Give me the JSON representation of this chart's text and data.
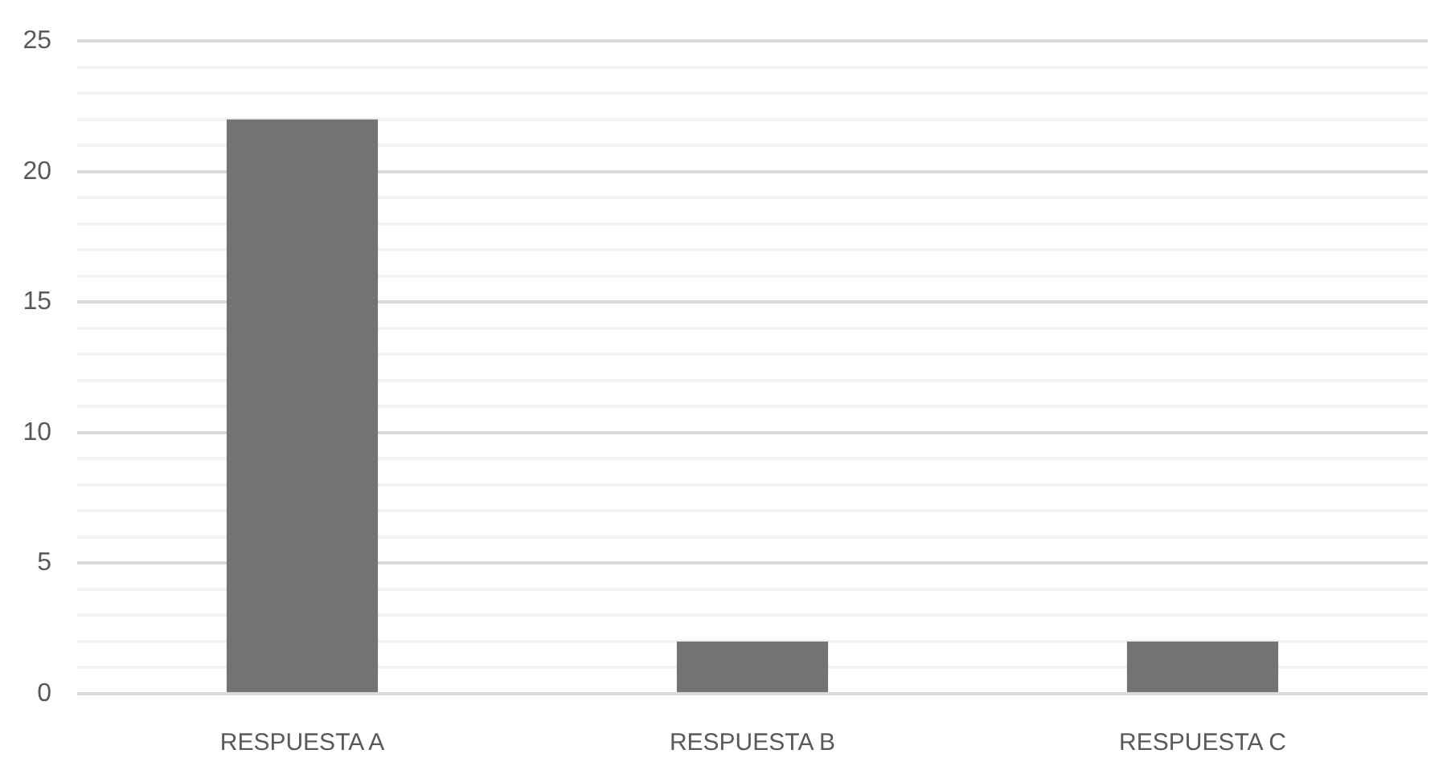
{
  "chart_data": {
    "type": "bar",
    "categories": [
      "RESPUESTA A",
      "RESPUESTA B",
      "RESPUESTA C"
    ],
    "values": [
      22,
      2,
      2
    ],
    "color": "#737373",
    "ylim": [
      0,
      25
    ],
    "yticks": [
      0,
      {
        "value": 1,
        "label": null
      },
      {
        "value": 2,
        "label": null
      },
      {
        "value": 3,
        "label": null
      },
      {
        "value": 4,
        "label": null
      },
      5,
      {
        "value": 6,
        "label": null
      },
      {
        "value": 7,
        "label": null
      },
      {
        "value": 8,
        "label": null
      },
      {
        "value": 9,
        "label": null
      },
      10,
      {
        "value": 11,
        "label": null
      },
      {
        "value": 12,
        "label": null
      },
      {
        "value": 13,
        "label": null
      },
      {
        "value": 14,
        "label": null
      },
      15,
      {
        "value": 16,
        "label": null
      },
      {
        "value": 17,
        "label": null
      },
      {
        "value": 18,
        "label": null
      },
      {
        "value": 19,
        "label": null
      },
      20,
      {
        "value": 21,
        "label": null
      },
      {
        "value": 22,
        "label": null
      },
      {
        "value": 23,
        "label": null
      },
      {
        "value": 24,
        "label": null
      },
      25
    ],
    "grid": true
  }
}
